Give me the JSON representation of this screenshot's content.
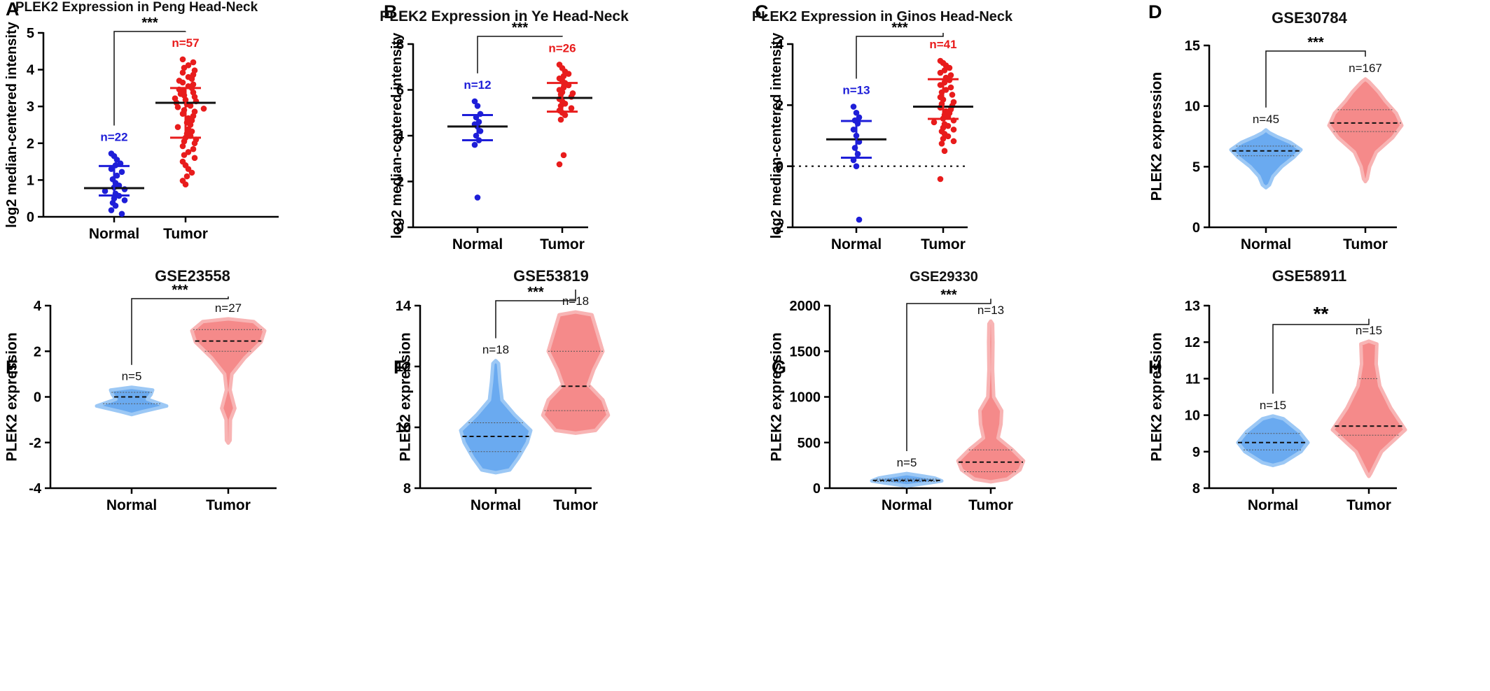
{
  "figure": {
    "colors": {
      "normal_dot": "#1e1ed8",
      "tumor_dot": "#e81c1c",
      "normal_violin": "#6aaaf0",
      "normal_violin_edge": "#9cc8f5",
      "tumor_violin": "#f58a8a",
      "tumor_violin_edge": "#f8b4b4",
      "axis": "#000000"
    }
  },
  "panels": [
    {
      "letter": "A",
      "chart_data": {
        "type": "scatter",
        "title": "PLEK2 Expression in Peng Head-Neck",
        "ylabel": "log2 median-centered intensity",
        "categories": [
          "Normal",
          "Tumor"
        ],
        "ylim": [
          0,
          5
        ],
        "yticks": [
          0,
          1,
          2,
          3,
          4,
          5
        ],
        "significance": "***",
        "groups": [
          {
            "name": "Normal",
            "n_label": "n=22",
            "mean": 0.78,
            "sd_low": 0.58,
            "sd_high": 1.38,
            "points": [
              1.72,
              1.65,
              1.55,
              1.45,
              1.4,
              1.3,
              1.22,
              1.12,
              1.02,
              0.92,
              0.85,
              0.8,
              0.75,
              0.7,
              0.63,
              0.57,
              0.5,
              0.45,
              0.38,
              0.3,
              0.18,
              0.08
            ]
          },
          {
            "name": "Tumor",
            "n_label": "n=57",
            "mean": 3.1,
            "sd_low": 2.15,
            "sd_high": 3.5,
            "points": [
              4.28,
              4.2,
              4.12,
              4.05,
              3.98,
              3.92,
              3.86,
              3.8,
              3.75,
              3.7,
              3.65,
              3.6,
              3.55,
              3.5,
              3.46,
              3.42,
              3.38,
              3.34,
              3.3,
              3.26,
              3.22,
              3.18,
              3.14,
              3.1,
              3.06,
              3.02,
              2.98,
              2.94,
              2.9,
              2.86,
              2.8,
              2.74,
              2.68,
              2.62,
              2.56,
              2.5,
              2.44,
              2.38,
              2.32,
              2.26,
              2.2,
              2.15,
              2.1,
              2.05,
              2.0,
              1.92,
              1.84,
              1.76,
              1.68,
              1.6,
              1.5,
              1.4,
              1.3,
              1.2,
              1.1,
              0.98,
              0.88
            ]
          }
        ]
      }
    },
    {
      "letter": "B",
      "chart_data": {
        "type": "scatter",
        "title": "PLEK2 Expression in Ye Head-Neck",
        "ylabel": "log2 median-centered intensity",
        "categories": [
          "Normal",
          "Tumor"
        ],
        "ylim": [
          0,
          8
        ],
        "yticks": [
          0,
          2,
          4,
          6,
          8
        ],
        "significance": "***",
        "groups": [
          {
            "name": "Normal",
            "n_label": "n=12",
            "mean": 4.4,
            "sd_low": 3.8,
            "sd_high": 4.9,
            "points": [
              5.5,
              5.3,
              4.95,
              4.8,
              4.6,
              4.5,
              4.4,
              4.2,
              4.0,
              3.8,
              3.6,
              1.3
            ]
          },
          {
            "name": "Tumor",
            "n_label": "n=26",
            "mean": 5.65,
            "sd_low": 5.05,
            "sd_high": 6.3,
            "points": [
              7.1,
              6.95,
              6.8,
              6.7,
              6.6,
              6.5,
              6.4,
              6.3,
              6.2,
              6.1,
              6.0,
              5.9,
              5.85,
              5.8,
              5.7,
              5.6,
              5.5,
              5.4,
              5.3,
              5.2,
              5.1,
              5.0,
              4.9,
              4.7,
              3.15,
              2.75
            ]
          }
        ]
      }
    },
    {
      "letter": "C",
      "chart_data": {
        "type": "scatter",
        "title": "PLEK2 Expression in Ginos Head-Neck",
        "ylabel": "log2 median-centered intensity",
        "categories": [
          "Normal",
          "Tumor"
        ],
        "ylim": [
          -2,
          4
        ],
        "yticks": [
          -2,
          0,
          2,
          4
        ],
        "reference_line": 0,
        "significance": "***",
        "groups": [
          {
            "name": "Normal",
            "n_label": "n=13",
            "mean": 0.88,
            "sd_low": 0.28,
            "sd_high": 1.48,
            "points": [
              1.95,
              1.75,
              1.6,
              1.5,
              1.4,
              1.2,
              1.0,
              0.8,
              0.6,
              0.4,
              0.2,
              0.0,
              -1.75
            ]
          },
          {
            "name": "Tumor",
            "n_label": "n=41",
            "mean": 1.95,
            "sd_low": 1.55,
            "sd_high": 2.85,
            "points": [
              3.45,
              3.38,
              3.3,
              3.22,
              3.14,
              3.06,
              2.98,
              2.9,
              2.82,
              2.74,
              2.66,
              2.58,
              2.5,
              2.42,
              2.34,
              2.26,
              2.18,
              2.1,
              2.04,
              1.98,
              1.92,
              1.86,
              1.8,
              1.74,
              1.68,
              1.62,
              1.56,
              1.5,
              1.44,
              1.38,
              1.32,
              1.26,
              1.2,
              1.14,
              1.06,
              0.98,
              0.9,
              0.82,
              0.74,
              0.5,
              -0.42
            ]
          }
        ]
      }
    },
    {
      "letter": "D",
      "chart_data": {
        "type": "violin",
        "title": "GSE30784",
        "ylabel": "PLEK2 expression",
        "categories": [
          "Normal",
          "Tumor"
        ],
        "ylim": [
          0,
          15
        ],
        "yticks": [
          0,
          5,
          10,
          15
        ],
        "significance": "***",
        "groups": [
          {
            "name": "Normal",
            "n_label": "n=45",
            "median": 6.3,
            "q1": 5.9,
            "q3": 6.7,
            "density": [
              [
                3.5,
                0.1
              ],
              [
                4.2,
                0.2
              ],
              [
                5.0,
                0.45
              ],
              [
                5.8,
                0.8
              ],
              [
                6.4,
                1.0
              ],
              [
                7.0,
                0.7
              ],
              [
                7.5,
                0.3
              ],
              [
                7.8,
                0.1
              ]
            ]
          },
          {
            "name": "Tumor",
            "n_label": "n=167",
            "median": 8.6,
            "q1": 7.9,
            "q3": 9.7,
            "density": [
              [
                4.0,
                0.05
              ],
              [
                5.0,
                0.12
              ],
              [
                6.2,
                0.3
              ],
              [
                7.4,
                0.75
              ],
              [
                8.4,
                1.0
              ],
              [
                9.4,
                0.85
              ],
              [
                10.4,
                0.55
              ],
              [
                11.2,
                0.35
              ],
              [
                12.0,
                0.1
              ]
            ]
          }
        ]
      }
    },
    {
      "letter": "E",
      "chart_data": {
        "type": "violin",
        "title": "GSE23558",
        "ylabel": "PLEK2 expression",
        "categories": [
          "Normal",
          "Tumor"
        ],
        "ylim": [
          -4,
          4
        ],
        "yticks": [
          -4,
          -2,
          0,
          2,
          4
        ],
        "significance": "***",
        "groups": [
          {
            "name": "Normal",
            "n_label": "n=5",
            "median": 0.0,
            "q1": -0.3,
            "q3": 0.2,
            "density": [
              [
                -0.65,
                0.3
              ],
              [
                -0.4,
                1.0
              ],
              [
                -0.1,
                0.45
              ],
              [
                0.1,
                0.55
              ],
              [
                0.3,
                0.6
              ]
            ]
          },
          {
            "name": "Tumor",
            "n_label": "n=27",
            "median": 2.45,
            "q1": 2.0,
            "q3": 2.95,
            "density": [
              [
                -1.9,
                0.05
              ],
              [
                -1.0,
                0.06
              ],
              [
                -0.5,
                0.18
              ],
              [
                0.3,
                0.05
              ],
              [
                1.0,
                0.1
              ],
              [
                1.7,
                0.45
              ],
              [
                2.4,
                0.9
              ],
              [
                2.9,
                1.0
              ],
              [
                3.3,
                0.7
              ]
            ]
          }
        ]
      }
    },
    {
      "letter": "F",
      "chart_data": {
        "type": "violin",
        "title": "GSE53819",
        "ylabel": "PLEK2 expression",
        "categories": [
          "Normal",
          "Tumor"
        ],
        "ylim": [
          8,
          14
        ],
        "yticks": [
          8,
          10,
          12,
          14
        ],
        "significance": "***",
        "groups": [
          {
            "name": "Normal",
            "n_label": "n=18",
            "median": 9.7,
            "q1": 9.2,
            "q3": 10.15,
            "density": [
              [
                8.6,
                0.4
              ],
              [
                9.0,
                0.65
              ],
              [
                9.5,
                0.9
              ],
              [
                9.9,
                1.0
              ],
              [
                10.4,
                0.55
              ],
              [
                10.9,
                0.18
              ],
              [
                11.5,
                0.12
              ],
              [
                12.1,
                0.08
              ]
            ]
          },
          {
            "name": "Tumor",
            "n_label": "n=18",
            "median": 11.35,
            "q1": 10.55,
            "q3": 12.5,
            "density": [
              [
                9.9,
                0.55
              ],
              [
                10.4,
                0.9
              ],
              [
                10.9,
                0.75
              ],
              [
                11.4,
                0.35
              ],
              [
                11.9,
                0.5
              ],
              [
                12.5,
                0.75
              ],
              [
                13.1,
                0.6
              ],
              [
                13.7,
                0.45
              ]
            ]
          }
        ]
      }
    },
    {
      "letter": "G",
      "chart_data": {
        "type": "violin",
        "title": "GSE29330",
        "ylabel": "PLEK2 expression",
        "categories": [
          "Normal",
          "Tumor"
        ],
        "ylim": [
          0,
          2000
        ],
        "yticks": [
          0,
          500,
          1000,
          1500,
          2000
        ],
        "significance": "***",
        "groups": [
          {
            "name": "Normal",
            "n_label": "n=5",
            "median": 85,
            "q1": 75,
            "q3": 100,
            "density": [
              [
                55,
                0.6
              ],
              [
                80,
                1.0
              ],
              [
                110,
                0.8
              ],
              [
                130,
                0.5
              ]
            ]
          },
          {
            "name": "Tumor",
            "n_label": "n=13",
            "median": 285,
            "q1": 180,
            "q3": 420,
            "density": [
              [
                100,
                0.45
              ],
              [
                200,
                0.8
              ],
              [
                300,
                0.9
              ],
              [
                420,
                0.6
              ],
              [
                550,
                0.2
              ],
              [
                700,
                0.28
              ],
              [
                850,
                0.3
              ],
              [
                1000,
                0.08
              ],
              [
                1300,
                0.05
              ],
              [
                1600,
                0.06
              ],
              [
                1800,
                0.05
              ]
            ]
          }
        ]
      }
    },
    {
      "letter": "H",
      "chart_data": {
        "type": "violin",
        "title": "GSE58911",
        "ylabel": "PLEK2 expression",
        "categories": [
          "Normal",
          "Tumor"
        ],
        "ylim": [
          8,
          13
        ],
        "yticks": [
          8,
          9,
          10,
          11,
          12,
          13
        ],
        "significance": "**",
        "groups": [
          {
            "name": "Normal",
            "n_label": "n=15",
            "median": 9.25,
            "q1": 9.05,
            "q3": 9.5,
            "density": [
              [
                8.7,
                0.3
              ],
              [
                9.0,
                0.8
              ],
              [
                9.25,
                1.0
              ],
              [
                9.55,
                0.75
              ],
              [
                9.9,
                0.3
              ]
            ]
          },
          {
            "name": "Tumor",
            "n_label": "n=15",
            "median": 9.7,
            "q1": 9.45,
            "q3": 11.0,
            "density": [
              [
                8.4,
                0.05
              ],
              [
                9.0,
                0.35
              ],
              [
                9.6,
                1.0
              ],
              [
                10.2,
                0.6
              ],
              [
                10.8,
                0.3
              ],
              [
                11.4,
                0.2
              ],
              [
                11.95,
                0.22
              ]
            ]
          }
        ]
      }
    }
  ]
}
